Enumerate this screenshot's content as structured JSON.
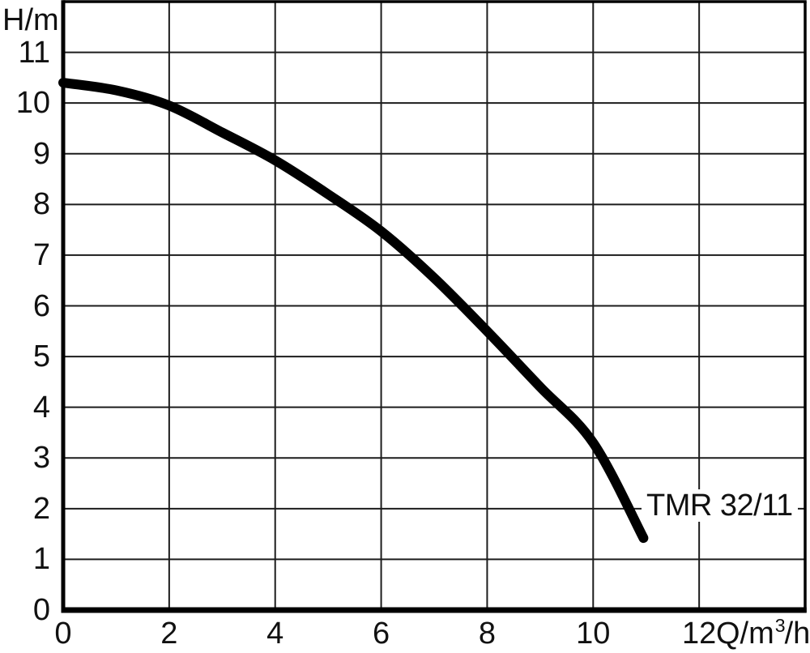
{
  "chart_data": {
    "type": "line",
    "title": "",
    "xlabel": "Q/m³/h",
    "xlabel_parts": {
      "pre": "Q/m",
      "sup": "3",
      "post": "/h"
    },
    "ylabel": "H/m",
    "xlim": [
      0,
      14
    ],
    "ylim": [
      0,
      12
    ],
    "x_ticks": [
      0,
      2,
      4,
      6,
      8,
      10,
      12
    ],
    "y_ticks": [
      0,
      1,
      2,
      3,
      4,
      5,
      6,
      7,
      8,
      9,
      10,
      11
    ],
    "grid": true,
    "legend_position": "annotation-on-chart",
    "series": [
      {
        "name": "TMR 32/11",
        "x": [
          0,
          1,
          2,
          3,
          4,
          5,
          6,
          7,
          8,
          9,
          10,
          10.95
        ],
        "y": [
          10.4,
          10.25,
          9.95,
          9.42,
          8.87,
          8.2,
          7.47,
          6.55,
          5.5,
          4.4,
          3.3,
          1.42
        ],
        "color": "#000000"
      }
    ],
    "colors": {
      "curve": "#000000",
      "grid": "#1c1c1c",
      "axis": "#000000",
      "text": "#111111",
      "background": "#ffffff"
    }
  }
}
